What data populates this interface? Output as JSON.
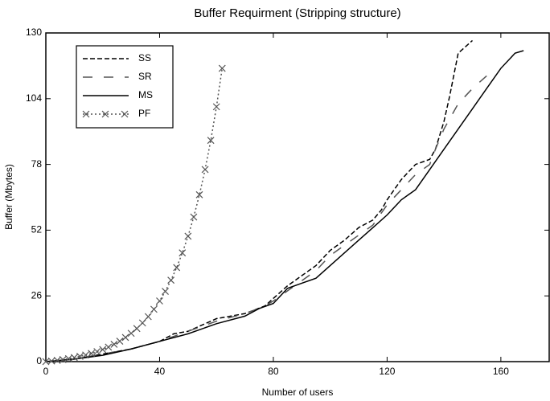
{
  "chart_data": {
    "type": "line",
    "title": "Buffer Requirment (Stripping structure)",
    "x_label": "Number of users",
    "y_label": "Buffer (Mbytes)",
    "xlim": [
      0,
      177
    ],
    "xticks": [
      0,
      40,
      80,
      120,
      160
    ],
    "ylim": [
      0,
      130
    ],
    "yticks": [
      0,
      26,
      52,
      78,
      104,
      130
    ],
    "legend": "upper left",
    "series": [
      {
        "name": "SS",
        "color": "#000000",
        "style": "dashed",
        "x": [
          0,
          10,
          20,
          30,
          40,
          45,
          50,
          60,
          70,
          77,
          80,
          85,
          90,
          95,
          100,
          105,
          110,
          115,
          118,
          120,
          125,
          130,
          135,
          137,
          140,
          142,
          145,
          150
        ],
        "values": [
          0,
          1,
          3,
          5,
          8,
          11,
          12,
          17,
          19,
          22,
          25,
          30,
          34,
          38,
          44,
          48,
          53,
          56,
          60,
          64,
          72,
          78,
          80,
          84,
          95,
          105,
          122,
          127
        ]
      },
      {
        "name": "SR",
        "color": "#555555",
        "style": "longdash",
        "x": [
          0,
          10,
          20,
          30,
          40,
          45,
          50,
          60,
          70,
          77,
          80,
          85,
          90,
          95,
          100,
          105,
          110,
          115,
          120,
          125,
          130,
          135,
          137,
          140,
          145,
          150,
          155
        ],
        "values": [
          0,
          1,
          3,
          5,
          8,
          10,
          12,
          16,
          19,
          22,
          24,
          28,
          32,
          36,
          42,
          46,
          50,
          54,
          62,
          68,
          74,
          78,
          84,
          92,
          102,
          108,
          113
        ]
      },
      {
        "name": "MS",
        "color": "#000000",
        "style": "solid",
        "x": [
          0,
          10,
          20,
          30,
          40,
          50,
          60,
          70,
          75,
          80,
          85,
          90,
          95,
          100,
          105,
          110,
          115,
          120,
          125,
          130,
          135,
          140,
          145,
          150,
          155,
          160,
          165,
          168
        ],
        "values": [
          0,
          1,
          2.5,
          5,
          8,
          11,
          15,
          18,
          21,
          23,
          29,
          31,
          33,
          38,
          43,
          48,
          53,
          58,
          64,
          68,
          76,
          84,
          92,
          100,
          108,
          116,
          122,
          123
        ]
      },
      {
        "name": "PF",
        "color": "#555555",
        "style": "dotted",
        "marker": "x",
        "x": [
          0,
          2,
          4,
          6,
          8,
          10,
          12,
          14,
          16,
          18,
          20,
          22,
          24,
          26,
          28,
          30,
          32,
          34,
          36,
          38,
          40,
          42,
          44,
          46,
          48,
          50,
          52,
          54,
          56,
          58,
          60,
          62
        ],
        "values": [
          0,
          0.24,
          0.51,
          0.83,
          1.19,
          1.6,
          2.08,
          2.62,
          3.25,
          3.97,
          4.8,
          5.75,
          6.85,
          8.1,
          9.54,
          11.2,
          13.1,
          15.3,
          17.8,
          20.7,
          24,
          27.8,
          32.2,
          37.2,
          43,
          49.6,
          57.2,
          66,
          76,
          87.5,
          100.8,
          116
        ]
      }
    ]
  }
}
